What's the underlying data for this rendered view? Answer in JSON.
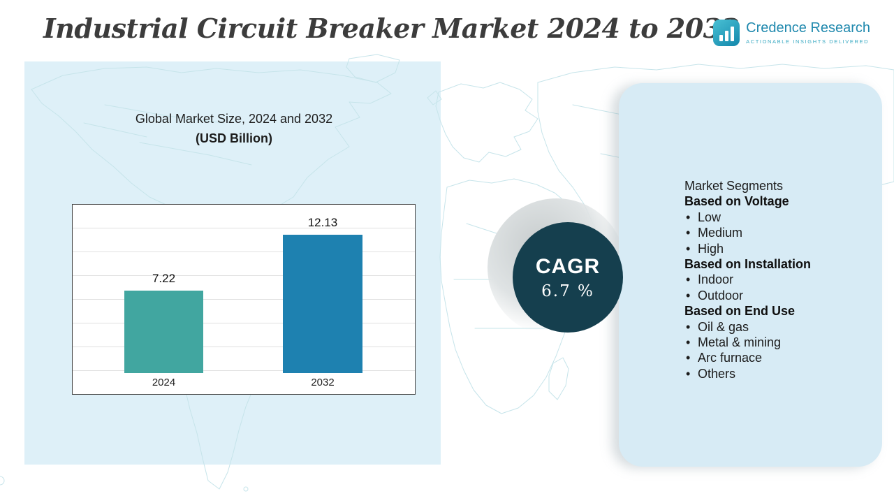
{
  "header": {
    "title": "Industrial Circuit Breaker Market 2024 to 2032",
    "logo": {
      "name": "Credence Research",
      "tagline": "Actionable Insights Delivered"
    }
  },
  "chart_panel": {
    "title_line1": "Global Market Size, 2024 and 2032",
    "title_line2": "(USD Billion)"
  },
  "chart_data": {
    "type": "bar",
    "title": "Global Market Size, 2024 and 2032 (USD Billion)",
    "categories": [
      "2024",
      "2032"
    ],
    "values": [
      7.22,
      12.13
    ],
    "bar_colors": [
      "#41a6a0",
      "#1e81b0"
    ],
    "ylim": [
      0,
      14.8
    ],
    "grid": true,
    "legend": "none",
    "xlabel": "",
    "ylabel": ""
  },
  "cagr": {
    "label": "CAGR",
    "value": "6.7 %"
  },
  "segments": {
    "title": "Market Segments",
    "groups": [
      {
        "heading": "Based on Voltage",
        "items": [
          "Low",
          "Medium",
          "High"
        ]
      },
      {
        "heading": "Based on Installation",
        "items": [
          "Indoor",
          "Outdoor"
        ]
      },
      {
        "heading": "Based on End Use",
        "items": [
          "Oil & gas",
          "Metal & mining",
          "Arc furnace",
          "Others"
        ]
      }
    ]
  },
  "colors": {
    "panel_blue": "#d7ebf5",
    "left_panel_blue": "#def0f8",
    "bar_teal": "#41a6a0",
    "bar_blue": "#1e81b0",
    "cagr_dark": "#153f4e",
    "map_line": "#c6e4ea",
    "logo_teal": "#2089ae"
  }
}
